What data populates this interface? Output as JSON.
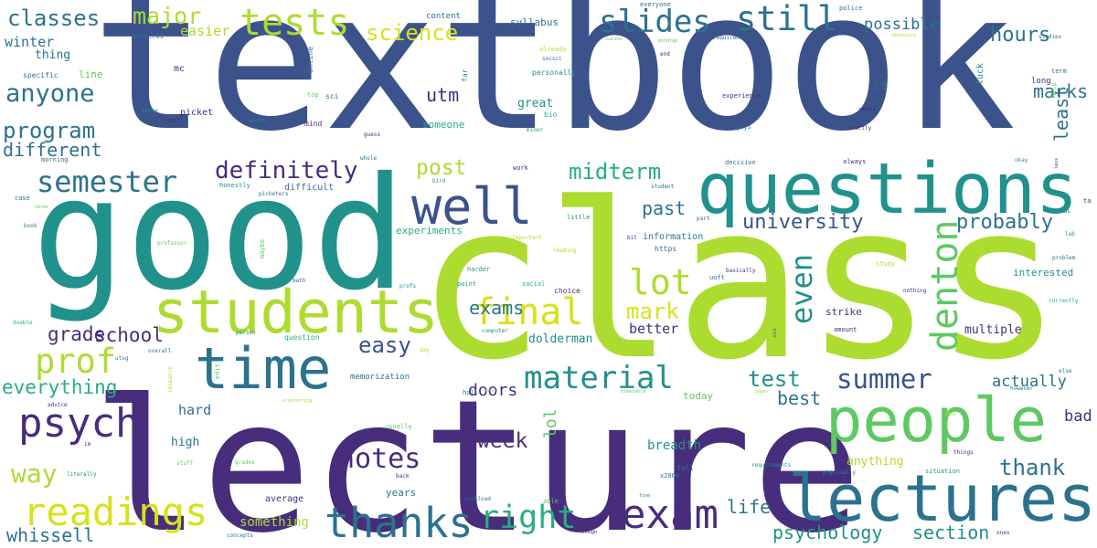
{
  "palette": {
    "indigo": "#472d7b",
    "blue": "#3b528b",
    "steel": "#2c728e",
    "teal": "#21918c",
    "green": "#28ae80",
    "lime": "#5ec962",
    "yellowgreen": "#addc30",
    "yellow": "#d7e219",
    "purple": "#440154"
  },
  "words": [
    {
      "text": "textbook",
      "color": "blue"
    },
    {
      "text": "class",
      "color": "yellowgreen"
    },
    {
      "text": "good",
      "color": "teal"
    },
    {
      "text": "lecture",
      "color": "indigo"
    },
    {
      "text": "questions",
      "color": "teal"
    },
    {
      "text": "lectures",
      "color": "steel"
    },
    {
      "text": "people",
      "color": "lime"
    },
    {
      "text": "students",
      "color": "yellowgreen"
    },
    {
      "text": "time",
      "color": "steel"
    },
    {
      "text": "tests",
      "color": "yellowgreen"
    },
    {
      "text": "well",
      "color": "blue"
    },
    {
      "text": "still",
      "color": "steel"
    },
    {
      "text": "slides",
      "color": "steel"
    },
    {
      "text": "exam",
      "color": "indigo"
    },
    {
      "text": "readings",
      "color": "yellow"
    },
    {
      "text": "thanks",
      "color": "steel"
    },
    {
      "text": "psych",
      "color": "indigo"
    },
    {
      "text": "final",
      "color": "yellow"
    },
    {
      "text": "denton",
      "color": "lime"
    },
    {
      "text": "prof",
      "color": "yellowgreen"
    },
    {
      "text": "right",
      "color": "green"
    },
    {
      "text": "material",
      "color": "teal"
    },
    {
      "text": "semester",
      "color": "steel"
    },
    {
      "text": "lot",
      "color": "yellowgreen"
    },
    {
      "text": "summer",
      "color": "blue"
    },
    {
      "text": "anyone",
      "color": "steel"
    },
    {
      "text": "notes",
      "color": "indigo"
    },
    {
      "text": "even",
      "color": "teal"
    },
    {
      "text": "definitely",
      "color": "indigo"
    },
    {
      "text": "midterm",
      "color": "green"
    },
    {
      "text": "way",
      "color": "yellowgreen"
    },
    {
      "text": "program",
      "color": "steel"
    },
    {
      "text": "major",
      "color": "yellowgreen"
    },
    {
      "text": "classes",
      "color": "steel"
    },
    {
      "text": "science",
      "color": "yellow"
    },
    {
      "text": "easy",
      "color": "blue"
    },
    {
      "text": "mark",
      "color": "yellow"
    },
    {
      "text": "week",
      "color": "indigo"
    },
    {
      "text": "post",
      "color": "yellowgreen"
    },
    {
      "text": "test",
      "color": "teal"
    },
    {
      "text": "university",
      "color": "blue"
    },
    {
      "text": "probably",
      "color": "steel"
    },
    {
      "text": "past",
      "color": "steel"
    },
    {
      "text": "thank",
      "color": "steel"
    },
    {
      "text": "everything",
      "color": "green"
    },
    {
      "text": "different",
      "color": "steel"
    },
    {
      "text": "grade",
      "color": "indigo"
    },
    {
      "text": "school",
      "color": "indigo"
    },
    {
      "text": "whissell",
      "color": "steel"
    },
    {
      "text": "hours",
      "color": "steel"
    },
    {
      "text": "marks",
      "color": "steel"
    },
    {
      "text": "least",
      "color": "steel"
    },
    {
      "text": "utm",
      "color": "indigo"
    },
    {
      "text": "exams",
      "color": "steel"
    },
    {
      "text": "doors",
      "color": "indigo"
    },
    {
      "text": "psychology",
      "color": "teal"
    },
    {
      "text": "section",
      "color": "teal"
    },
    {
      "text": "life",
      "color": "steel"
    },
    {
      "text": "lol",
      "color": "lime"
    },
    {
      "text": "best",
      "color": "steel"
    },
    {
      "text": "actually",
      "color": "steel"
    },
    {
      "text": "bad",
      "color": "indigo"
    },
    {
      "text": "possible",
      "color": "steel"
    },
    {
      "text": "winter",
      "color": "steel"
    },
    {
      "text": "better",
      "color": "indigo"
    },
    {
      "text": "easier",
      "color": "yellowgreen"
    },
    {
      "text": "thing",
      "color": "steel"
    },
    {
      "text": "cs",
      "color": "steel"
    },
    {
      "text": "hard",
      "color": "steel"
    },
    {
      "text": "high",
      "color": "steel"
    },
    {
      "text": "breadth",
      "color": "teal"
    },
    {
      "text": "something",
      "color": "yellowgreen"
    },
    {
      "text": "anything",
      "color": "yellowgreen"
    },
    {
      "text": "multiple",
      "color": "indigo"
    },
    {
      "text": "great",
      "color": "teal"
    },
    {
      "text": "dolderman",
      "color": "teal"
    },
    {
      "text": "experiments",
      "color": "green"
    },
    {
      "text": "memorization",
      "color": "steel"
    },
    {
      "text": "syllabus",
      "color": "steel"
    },
    {
      "text": "content",
      "color": "steel"
    },
    {
      "text": "strike",
      "color": "indigo"
    },
    {
      "text": "today",
      "color": "lime"
    },
    {
      "text": "interested",
      "color": "teal"
    },
    {
      "text": "information",
      "color": "steel"
    },
    {
      "text": "line",
      "color": "lime"
    },
    {
      "text": "mc",
      "color": "indigo"
    },
    {
      "text": "difficult",
      "color": "steel"
    },
    {
      "text": "someone",
      "color": "green"
    },
    {
      "text": "years",
      "color": "steel"
    },
    {
      "text": "average",
      "color": "indigo"
    },
    {
      "text": "long",
      "color": "indigo"
    },
    {
      "text": "midterms",
      "color": "steel"
    },
    {
      "text": "everyone",
      "color": "steel"
    },
    {
      "text": "police",
      "color": "steel"
    },
    {
      "text": "specific",
      "color": "steel"
    },
    {
      "text": "honestly",
      "color": "teal"
    },
    {
      "text": "picket",
      "color": "indigo"
    },
    {
      "text": "morning",
      "color": "steel"
    },
    {
      "text": "online",
      "color": "steel"
    },
    {
      "text": "sci",
      "color": "steel"
    },
    {
      "text": "bio",
      "color": "green"
    },
    {
      "text": "personally",
      "color": "teal"
    },
    {
      "text": "experience",
      "color": "indigo"
    },
    {
      "text": "guys",
      "color": "steel"
    },
    {
      "text": "decision",
      "color": "steel"
    },
    {
      "text": "always",
      "color": "indigo"
    },
    {
      "text": "work",
      "color": "indigo"
    },
    {
      "text": "luck",
      "color": "teal"
    },
    {
      "text": "https",
      "color": "steel"
    },
    {
      "text": "uoft",
      "color": "steel"
    },
    {
      "text": "little",
      "color": "teal"
    },
    {
      "text": "part",
      "color": "steel"
    },
    {
      "text": "choice",
      "color": "indigo"
    },
    {
      "text": "harder",
      "color": "teal"
    },
    {
      "text": "point",
      "color": "teal"
    },
    {
      "text": "social",
      "color": "green"
    },
    {
      "text": "computer",
      "color": "teal"
    },
    {
      "text": "question",
      "color": "green"
    },
    {
      "text": "maybe",
      "color": "lime"
    },
    {
      "text": "yeah",
      "color": "teal"
    },
    {
      "text": "professor",
      "color": "lime"
    },
    {
      "text": "case",
      "color": "steel"
    },
    {
      "text": "book",
      "color": "steel"
    },
    {
      "text": "mind",
      "color": "indigo"
    },
    {
      "text": "yet",
      "color": "indigo"
    },
    {
      "text": "sense",
      "color": "teal"
    },
    {
      "text": "top",
      "color": "lime"
    },
    {
      "text": "far",
      "color": "teal"
    },
    {
      "text": "important",
      "color": "yellowgreen"
    },
    {
      "text": "reading",
      "color": "yellowgreen"
    },
    {
      "text": "bit",
      "color": "indigo"
    },
    {
      "text": "basically",
      "color": "indigo"
    },
    {
      "text": "amount",
      "color": "indigo"
    },
    {
      "text": "nothing",
      "color": "indigo"
    },
    {
      "text": "study",
      "color": "yellowgreen"
    },
    {
      "text": "problem",
      "color": "steel"
    },
    {
      "text": "currently",
      "color": "green"
    },
    {
      "text": "fall",
      "color": "steel"
    },
    {
      "text": "x200b",
      "color": "steel"
    },
    {
      "text": "requirements",
      "color": "teal"
    },
    {
      "text": "situation",
      "color": "teal"
    },
    {
      "text": "physically",
      "color": "teal"
    },
    {
      "text": "things",
      "color": "indigo"
    },
    {
      "text": "however",
      "color": "steel"
    },
    {
      "text": "hall",
      "color": "steel"
    },
    {
      "text": "usually",
      "color": "lime"
    },
    {
      "text": "back",
      "color": "indigo"
    },
    {
      "text": "workload",
      "color": "steel"
    },
    {
      "text": "able",
      "color": "lime"
    },
    {
      "text": "enough",
      "color": "indigo"
    },
    {
      "text": "concepts",
      "color": "steel"
    },
    {
      "text": "overall",
      "color": "steel"
    },
    {
      "text": "advice",
      "color": "indigo"
    },
    {
      "text": "literally",
      "color": "teal"
    },
    {
      "text": "stuff",
      "color": "lime"
    },
    {
      "text": "grades",
      "color": "lime"
    },
    {
      "text": "edit",
      "color": "lime"
    },
    {
      "text": "research",
      "color": "yellowgreen"
    },
    {
      "text": "interesting",
      "color": "yellowgreen"
    },
    {
      "text": "doable",
      "color": "green"
    },
    {
      "text": "person",
      "color": "teal"
    },
    {
      "text": "math",
      "color": "steel"
    },
    {
      "text": "profs",
      "color": "teal"
    },
    {
      "text": "weeks",
      "color": "indigo"
    },
    {
      "text": "exactly",
      "color": "indigo"
    },
    {
      "text": "okay",
      "color": "teal"
    },
    {
      "text": "term",
      "color": "steel"
    },
    {
      "text": "help",
      "color": "lime"
    },
    {
      "text": "studies",
      "color": "steel"
    },
    {
      "text": "mindtap",
      "color": "lime"
    },
    {
      "text": "cuczos",
      "color": "lime"
    },
    {
      "text": "requirement",
      "color": "steel"
    },
    {
      "text": "already",
      "color": "yellowgreen"
    },
    {
      "text": "guess",
      "color": "indigo"
    },
    {
      "text": "minor",
      "color": "teal"
    },
    {
      "text": "whole",
      "color": "steel"
    },
    {
      "text": "bird",
      "color": "teal"
    },
    {
      "text": "student",
      "color": "steel"
    },
    {
      "text": "picketers",
      "color": "steel"
    },
    {
      "text": "terms",
      "color": "lime"
    },
    {
      "text": "worth",
      "color": "teal"
    },
    {
      "text": "socsci",
      "color": "steel"
    },
    {
      "text": "end",
      "color": "indigo"
    },
    {
      "text": "necessary",
      "color": "yellowgreen"
    },
    {
      "text": "less",
      "color": "indigo"
    },
    {
      "text": "ta",
      "color": "indigo"
    },
    {
      "text": "tas",
      "color": "steel"
    },
    {
      "text": "lab",
      "color": "teal"
    },
    {
      "text": "else",
      "color": "steel"
    },
    {
      "text": "gpa",
      "color": "yellowgreen"
    },
    {
      "text": "utsg",
      "color": "steel"
    },
    {
      "text": "day",
      "color": "yellowgreen"
    },
    {
      "text": "sex",
      "color": "steel"
    },
    {
      "text": "ones",
      "color": "indigo"
    },
    {
      "text": "fine",
      "color": "steel"
    },
    {
      "text": "timetable",
      "color": "lime"
    },
    {
      "text": "race",
      "color": "lime"
    },
    {
      "text": "paper",
      "color": "yellowgreen"
    },
    {
      "text": "im",
      "color": "indigo"
    }
  ]
}
